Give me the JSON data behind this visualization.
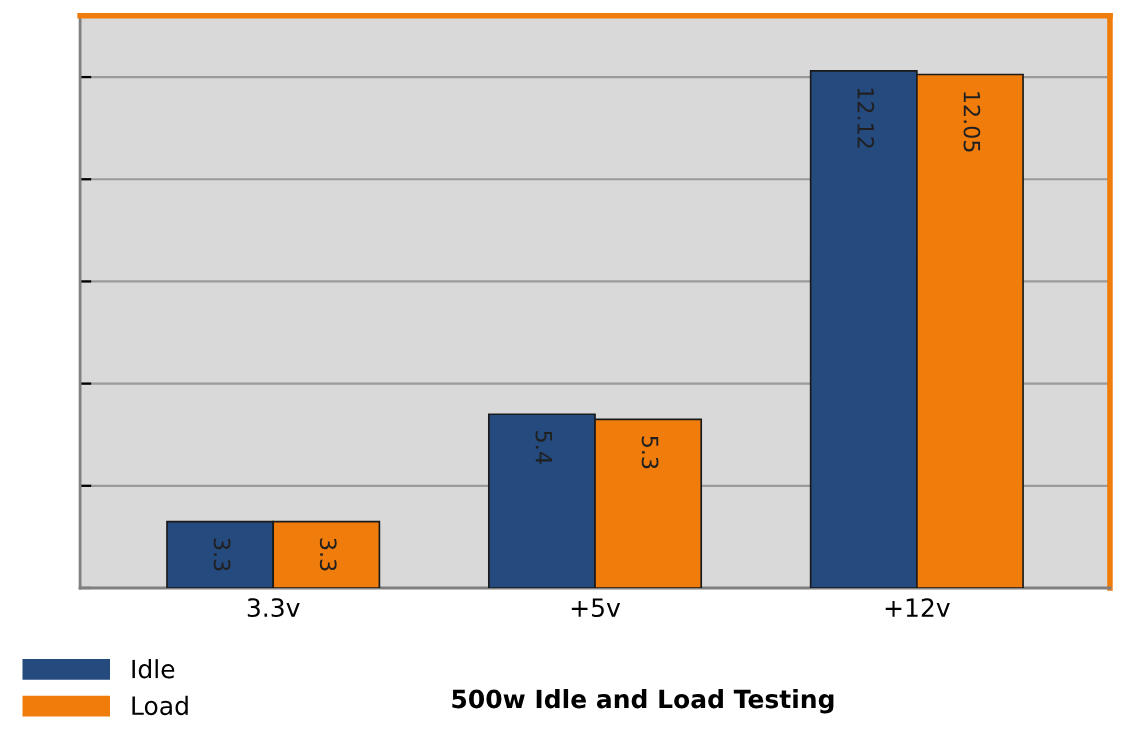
{
  "chart_data": {
    "type": "bar",
    "title": "500w Idle and Load Testing",
    "categories": [
      "3.3v",
      "+5v",
      "+12v"
    ],
    "series": [
      {
        "name": "Idle",
        "color": "#254a7e",
        "values": [
          3.3,
          5.4,
          12.12
        ]
      },
      {
        "name": "Load",
        "color": "#f07c0c",
        "values": [
          3.3,
          5.3,
          12.05
        ]
      }
    ],
    "ylim": [
      2,
      13.2
    ],
    "yticks": [
      {
        "value": 2,
        "label": null
      },
      {
        "value": 4,
        "label": null
      },
      {
        "value": 6,
        "label": null
      },
      {
        "value": 8,
        "label": null
      },
      {
        "value": 10,
        "label": null
      },
      {
        "value": 12,
        "label": null
      }
    ],
    "grid": "y",
    "data_labels": true,
    "legend": "bottom left",
    "tick_labels": "x"
  }
}
